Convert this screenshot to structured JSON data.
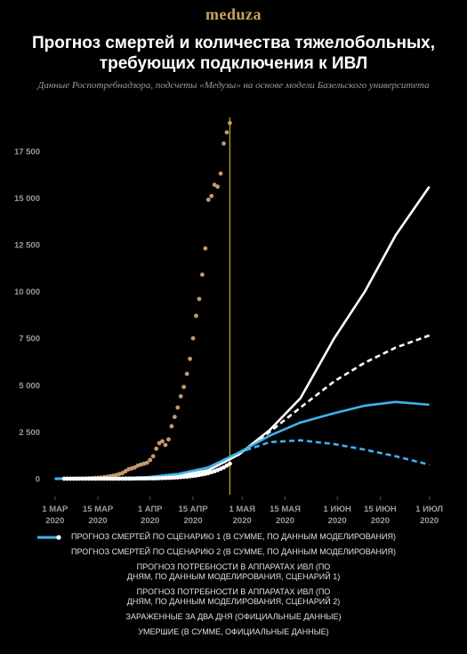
{
  "brand": "meduza",
  "chart_data": {
    "type": "line",
    "title": "Прогноз смертей и количества тяжелобольных, требующих подключения к ИВЛ",
    "subtitle": "Данные Роспотребнадзора, подсчеты «Медузы» на основе модели Базельского университета",
    "xlim": [
      "2020-02-26",
      "2020-07-04"
    ],
    "xticks": [
      {
        "value": "2020-03-01",
        "label": "1 МАР 2020"
      },
      {
        "value": "2020-03-15",
        "label": "15 МАР 2020"
      },
      {
        "value": "2020-04-01",
        "label": "1 АПР 2020"
      },
      {
        "value": "2020-04-15",
        "label": "15 АПР 2020"
      },
      {
        "value": "2020-05-01",
        "label": "1 МАЯ 2020"
      },
      {
        "value": "2020-05-15",
        "label": "15 МАЯ 2020"
      },
      {
        "value": "2020-06-01",
        "label": "1 ИЮН 2020"
      },
      {
        "value": "2020-06-15",
        "label": "15 ИЮН 2020"
      },
      {
        "value": "2020-07-01",
        "label": "1 ИЮЛ 2020"
      }
    ],
    "ylim": [
      -600,
      19500
    ],
    "yticks": [
      0,
      {
        "value": 2500,
        "label": "2 500"
      },
      {
        "value": 5000,
        "label": "5 000"
      },
      {
        "value": 7500,
        "label": "7 500"
      },
      {
        "value": 10000,
        "label": "10 000"
      },
      {
        "value": 12500,
        "label": "12 500"
      },
      {
        "value": 15000,
        "label": "15 000"
      },
      {
        "value": 17500,
        "label": "17 500"
      }
    ],
    "grid": false,
    "vline": {
      "x": "2020-04-27",
      "color": "#b9a21a"
    },
    "x": [
      "2020-03-01",
      "2020-03-10",
      "2020-03-20",
      "2020-03-31",
      "2020-04-10",
      "2020-04-20",
      "2020-04-30",
      "2020-05-10",
      "2020-05-20",
      "2020-05-31",
      "2020-06-10",
      "2020-06-20",
      "2020-07-01"
    ],
    "series": [
      {
        "name": "ПРОГНОЗ СМЕРТЕЙ ПО СЦЕНАРИЮ 1 (В СУММЕ, ПО ДАННЫМ МОДЕЛИРОВАНИЯ)",
        "color": "#ffffff",
        "dash": false,
        "values": [
          0,
          0,
          10,
          50,
          150,
          450,
          1300,
          2600,
          4300,
          7500,
          10000,
          13000,
          15600
        ]
      },
      {
        "name": "ПРОГНОЗ СМЕРТЕЙ ПО СЦЕНАРИЮ 2 (В СУММЕ, ПО ДАННЫМ МОДЕЛИРОВАНИЯ)",
        "color": "#ffffff",
        "dash": true,
        "values": [
          0,
          0,
          10,
          50,
          150,
          450,
          1300,
          2500,
          3800,
          5200,
          6200,
          7000,
          7650
        ]
      },
      {
        "name": "ПРОГНОЗ ПОТРЕБНОСТИ В АППАРАТАХ ИВЛ (ПО ДНЯМ, ПО ДАННЫМ МОДЕЛИРОВАНИЯ, СЦЕНАРИЙ 1)",
        "color": "#3fb3f0",
        "dash": false,
        "values": [
          0,
          0,
          20,
          80,
          250,
          600,
          1400,
          2300,
          3000,
          3500,
          3900,
          4100,
          3950
        ]
      },
      {
        "name": "ПРОГНОЗ ПОТРЕБНОСТИ В АППАРАТАХ ИВЛ (ПО ДНЯМ, ПО ДАННЫМ МОДЕЛИРОВАНИЯ, СЦЕНАРИЙ 2)",
        "color": "#3fb3f0",
        "dash": true,
        "values": [
          0,
          0,
          20,
          80,
          250,
          600,
          1400,
          1950,
          2050,
          1850,
          1550,
          1200,
          750
        ]
      },
      {
        "name": "ЗАРАЖЕННЫЕ ЗА ДВА ДНЯ (ОФИЦИАЛЬНЫЕ ДАННЫЕ)",
        "color": "#c49a6c",
        "type": "scatter",
        "x": [
          "2020-03-04",
          "2020-03-05",
          "2020-03-06",
          "2020-03-07",
          "2020-03-08",
          "2020-03-09",
          "2020-03-10",
          "2020-03-11",
          "2020-03-12",
          "2020-03-13",
          "2020-03-14",
          "2020-03-15",
          "2020-03-16",
          "2020-03-17",
          "2020-03-18",
          "2020-03-19",
          "2020-03-20",
          "2020-03-21",
          "2020-03-22",
          "2020-03-23",
          "2020-03-24",
          "2020-03-25",
          "2020-03-26",
          "2020-03-27",
          "2020-03-28",
          "2020-03-29",
          "2020-03-30",
          "2020-03-31",
          "2020-04-01",
          "2020-04-02",
          "2020-04-03",
          "2020-04-04",
          "2020-04-05",
          "2020-04-06",
          "2020-04-07",
          "2020-04-08",
          "2020-04-09",
          "2020-04-10",
          "2020-04-11",
          "2020-04-12",
          "2020-04-13",
          "2020-04-14",
          "2020-04-15",
          "2020-04-16",
          "2020-04-17",
          "2020-04-18",
          "2020-04-19",
          "2020-04-20",
          "2020-04-21",
          "2020-04-22",
          "2020-04-23",
          "2020-04-24",
          "2020-04-25",
          "2020-04-26",
          "2020-04-27"
        ],
        "values": [
          2,
          3,
          4,
          6,
          8,
          10,
          12,
          15,
          20,
          30,
          40,
          50,
          60,
          80,
          100,
          130,
          160,
          200,
          250,
          300,
          400,
          500,
          550,
          600,
          700,
          750,
          800,
          850,
          1000,
          1200,
          1600,
          1900,
          2000,
          1800,
          2100,
          2800,
          3300,
          3800,
          4400,
          4900,
          5600,
          6400,
          7500,
          8700,
          9600,
          10900,
          12300,
          14900,
          15100,
          15700,
          15600,
          16300,
          17900,
          18500,
          19000
        ]
      },
      {
        "name": "УМЕРШИЕ (В СУММЕ, ОФИЦИАЛЬНЫЕ ДАННЫЕ)",
        "color": "#ffffff",
        "type": "scatter",
        "x": [
          "2020-03-04",
          "2020-03-05",
          "2020-03-06",
          "2020-03-07",
          "2020-03-08",
          "2020-03-09",
          "2020-03-10",
          "2020-03-11",
          "2020-03-12",
          "2020-03-13",
          "2020-03-14",
          "2020-03-15",
          "2020-03-16",
          "2020-03-17",
          "2020-03-18",
          "2020-03-19",
          "2020-03-20",
          "2020-03-21",
          "2020-03-22",
          "2020-03-23",
          "2020-03-24",
          "2020-03-25",
          "2020-03-26",
          "2020-03-27",
          "2020-03-28",
          "2020-03-29",
          "2020-03-30",
          "2020-03-31",
          "2020-04-01",
          "2020-04-02",
          "2020-04-03",
          "2020-04-04",
          "2020-04-05",
          "2020-04-06",
          "2020-04-07",
          "2020-04-08",
          "2020-04-09",
          "2020-04-10",
          "2020-04-11",
          "2020-04-12",
          "2020-04-13",
          "2020-04-14",
          "2020-04-15",
          "2020-04-16",
          "2020-04-17",
          "2020-04-18",
          "2020-04-19",
          "2020-04-20",
          "2020-04-21",
          "2020-04-22",
          "2020-04-23",
          "2020-04-24",
          "2020-04-25",
          "2020-04-26",
          "2020-04-27"
        ],
        "values": [
          0,
          0,
          0,
          0,
          0,
          0,
          0,
          0,
          0,
          0,
          0,
          0,
          1,
          1,
          1,
          1,
          1,
          1,
          2,
          3,
          4,
          4,
          5,
          6,
          8,
          9,
          10,
          12,
          15,
          17,
          20,
          24,
          30,
          36,
          45,
          50,
          60,
          70,
          85,
          100,
          110,
          130,
          150,
          170,
          200,
          230,
          260,
          300,
          350,
          400,
          460,
          530,
          600,
          700,
          800
        ]
      }
    ]
  }
}
